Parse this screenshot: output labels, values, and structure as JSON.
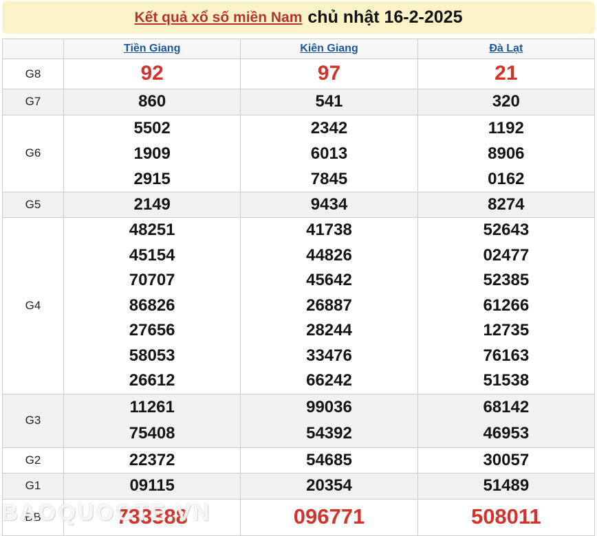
{
  "banner": {
    "title_link": "Kết quả xổ số miền Nam",
    "title_date": "chủ nhật 16-2-2025"
  },
  "table": {
    "columns": [
      "Tiền Giang",
      "Kiên Giang",
      "Đà Lạt"
    ],
    "rows": [
      {
        "label": "G8",
        "values": [
          [
            "92"
          ],
          [
            "97"
          ],
          [
            "21"
          ]
        ]
      },
      {
        "label": "G7",
        "values": [
          [
            "860"
          ],
          [
            "541"
          ],
          [
            "320"
          ]
        ]
      },
      {
        "label": "G6",
        "values": [
          [
            "5502",
            "1909",
            "2915"
          ],
          [
            "2342",
            "6013",
            "7845"
          ],
          [
            "1192",
            "8906",
            "0162"
          ]
        ]
      },
      {
        "label": "G5",
        "values": [
          [
            "2149"
          ],
          [
            "9434"
          ],
          [
            "8274"
          ]
        ]
      },
      {
        "label": "G4",
        "values": [
          [
            "48251",
            "45154",
            "70707",
            "86826",
            "27656",
            "58053",
            "26612"
          ],
          [
            "41738",
            "44826",
            "45642",
            "26887",
            "28244",
            "33476",
            "66242"
          ],
          [
            "52643",
            "02477",
            "52385",
            "61266",
            "12735",
            "76163",
            "51538"
          ]
        ]
      },
      {
        "label": "G3",
        "values": [
          [
            "11261",
            "75408"
          ],
          [
            "99036",
            "54392"
          ],
          [
            "68142",
            "46953"
          ]
        ]
      },
      {
        "label": "G2",
        "values": [
          [
            "22372"
          ],
          [
            "54685"
          ],
          [
            "30057"
          ]
        ]
      },
      {
        "label": "G1",
        "values": [
          [
            "09115"
          ],
          [
            "20354"
          ],
          [
            "51489"
          ]
        ]
      },
      {
        "label": "ĐB",
        "values": [
          [
            "733388"
          ],
          [
            "096771"
          ],
          [
            "508011"
          ]
        ]
      }
    ]
  },
  "watermark": "BAOQUOCTE.VN",
  "colors": {
    "banner_bg": "#FAF3C8",
    "title_link_red": "#B5352B",
    "column_link_blue": "#1A5699",
    "prize_red": "#D2342C",
    "row_shade": "#F1F1F1",
    "border": "#CCCCCC"
  }
}
